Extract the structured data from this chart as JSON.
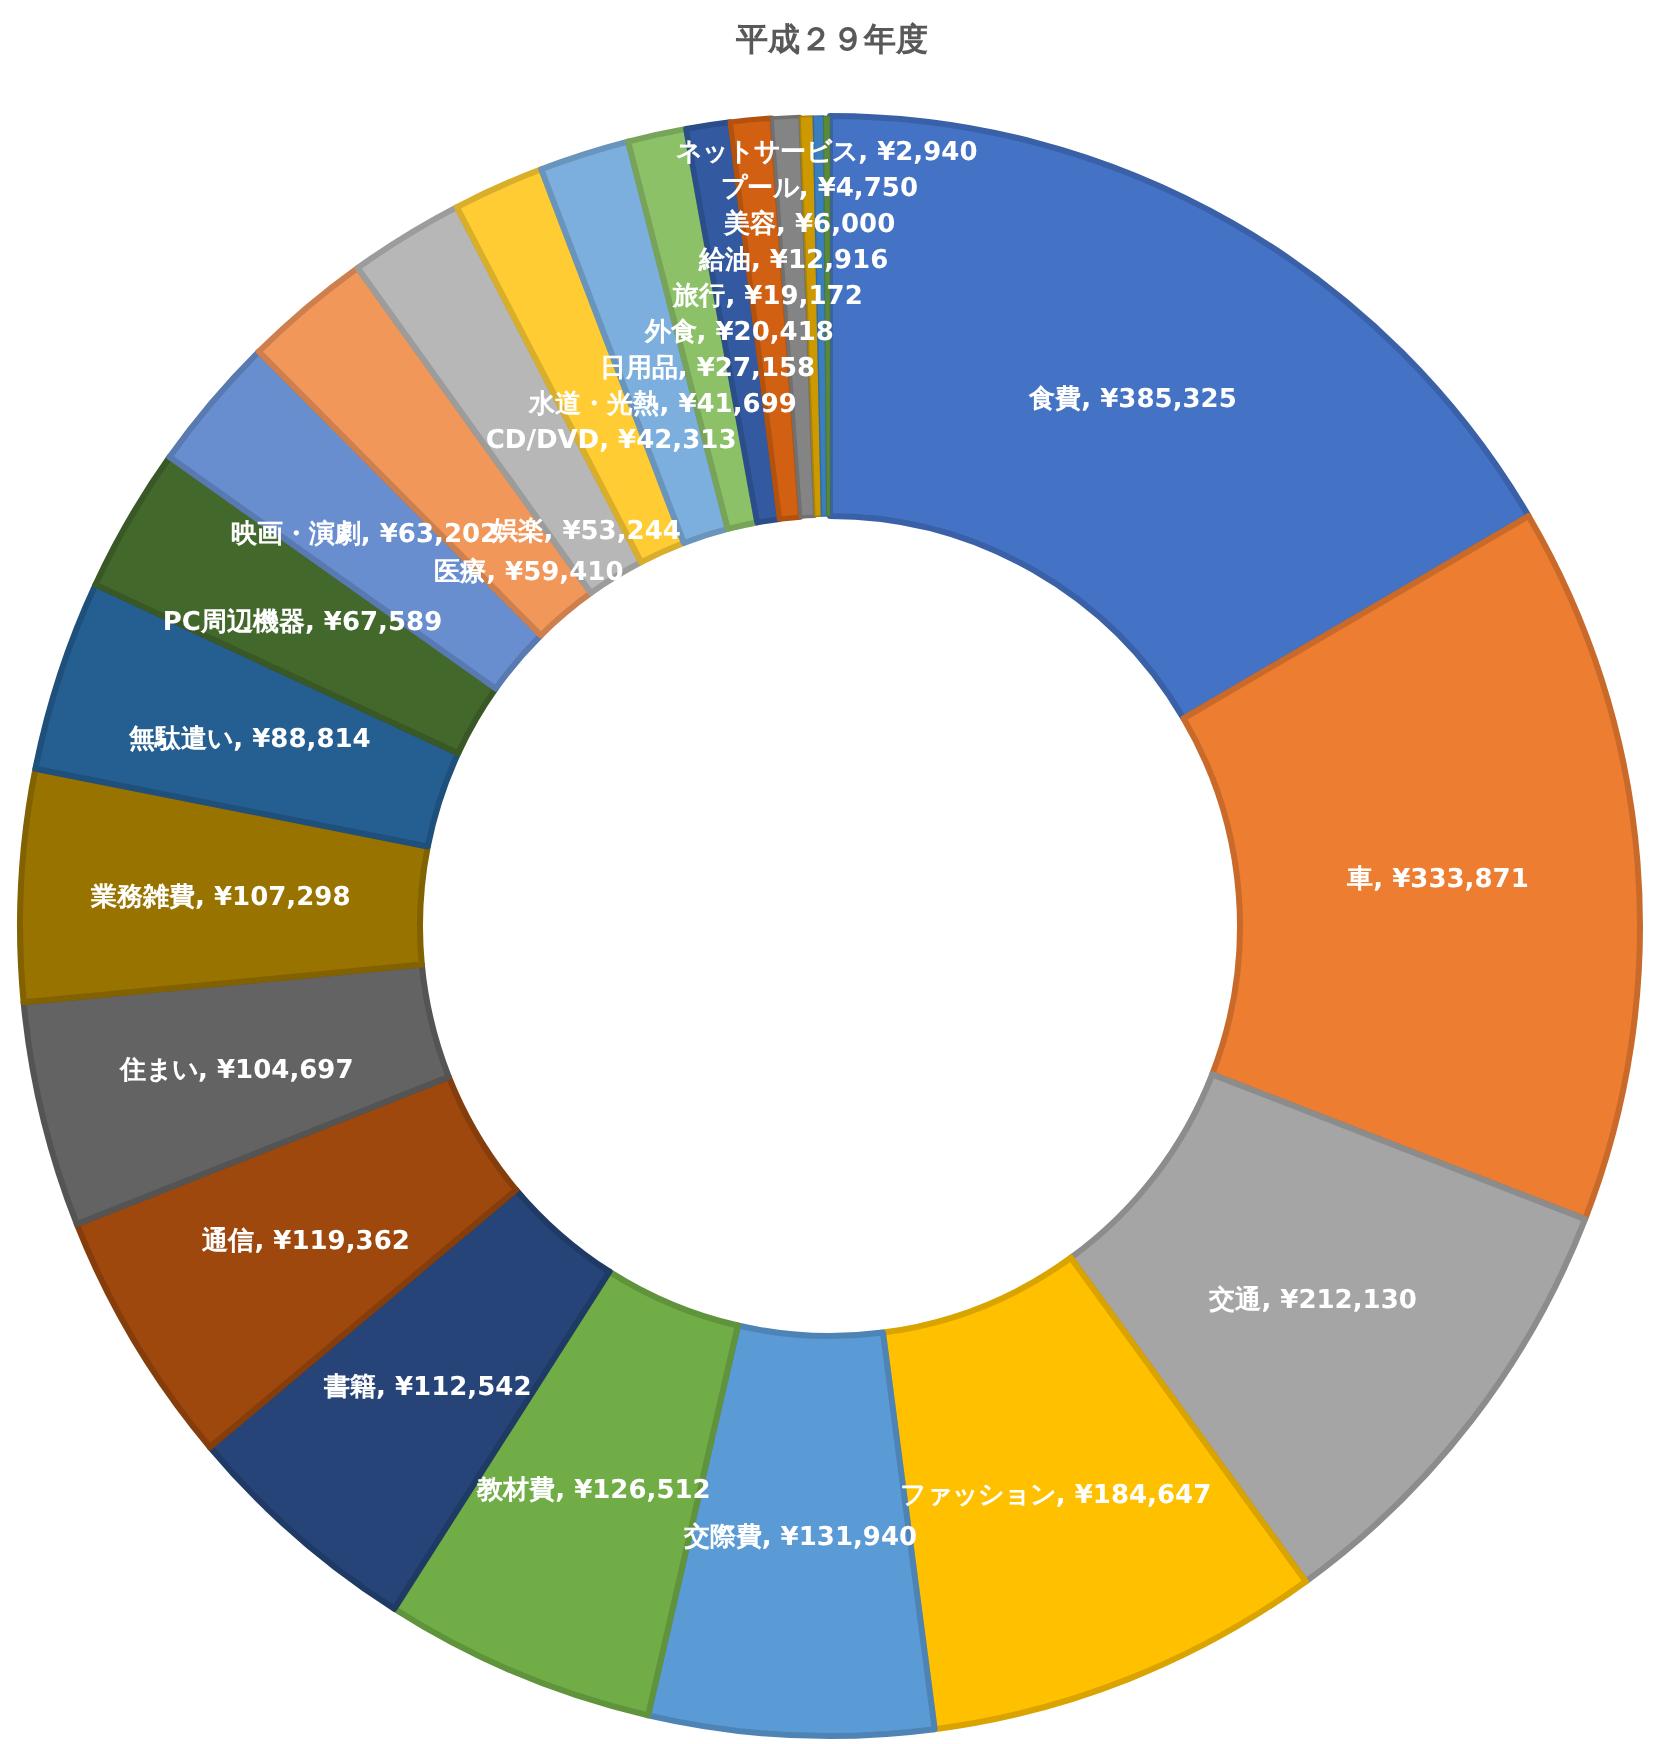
{
  "chart_data": {
    "type": "donut",
    "title": "平成２９年度",
    "categories": [
      "食費",
      "車",
      "交通",
      "ファッション",
      "交際費",
      "教材費",
      "書籍",
      "通信",
      "住まい",
      "業務雑費",
      "無駄遣い",
      "PC周辺機器",
      "映画・演劇",
      "医療",
      "娯楽",
      "CD/DVD",
      "水道・光熱",
      "日用品",
      "外食",
      "旅行",
      "給油",
      "美容",
      "プール",
      "ネットサービス"
    ],
    "values": [
      385325,
      333871,
      212130,
      184647,
      131940,
      126512,
      112542,
      119362,
      104697,
      107298,
      88814,
      67589,
      63202,
      59410,
      53244,
      42313,
      41699,
      27158,
      20418,
      19172,
      12916,
      6000,
      4750,
      2940
    ],
    "colors": [
      "#4472c4",
      "#ed7d31",
      "#a5a5a5",
      "#ffc000",
      "#5b9bd5",
      "#70ad47",
      "#264478",
      "#9e480e",
      "#636363",
      "#997300",
      "#255e91",
      "#43682b",
      "#698ed0",
      "#f1975a",
      "#b7b7b7",
      "#ffcd33",
      "#7cafdd",
      "#8cc168",
      "#335aa1",
      "#d26012",
      "#848484",
      "#cc9a00",
      "#3a7ebf",
      "#5a8a39"
    ],
    "value_labels": [
      "¥385,325",
      "¥333,871",
      "¥212,130",
      "¥184,647",
      "¥131,940",
      "¥126,512",
      "¥112,542",
      "¥119,362",
      "¥104,697",
      "¥107,298",
      "¥88,814",
      "¥67,589",
      "¥63,202",
      "¥59,410",
      "¥53,244",
      "¥42,313",
      "¥41,699",
      "¥27,158",
      "¥20,418",
      "¥19,172",
      "¥12,916",
      "¥6,000",
      "¥4,750",
      "¥2,940"
    ]
  }
}
